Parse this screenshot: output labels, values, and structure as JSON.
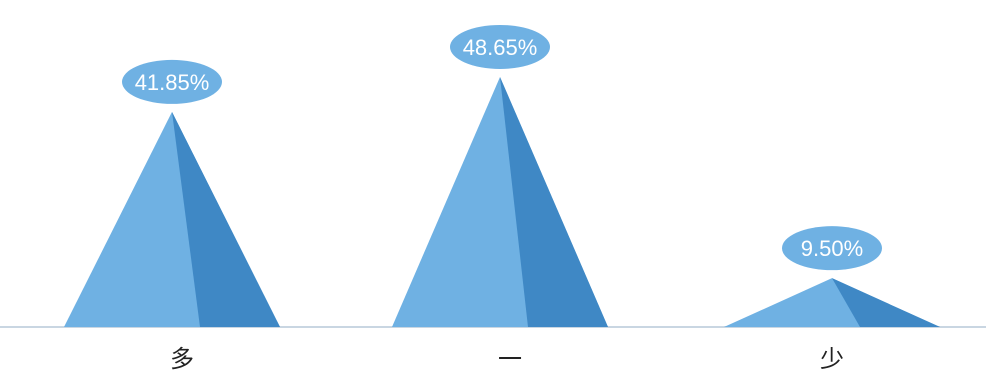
{
  "chart_data": {
    "type": "bar",
    "categories": [
      "多",
      "一",
      "少"
    ],
    "values": [
      41.85,
      48.65,
      9.5
    ],
    "data_labels": [
      "41.85%",
      "48.65%",
      "9.50%"
    ],
    "ylim": [
      0,
      50
    ],
    "grid": false,
    "legend": "none",
    "title": "",
    "xlabel": "",
    "ylabel": ""
  },
  "colors": {
    "pyramid_light": "#6fb1e3",
    "pyramid_dark": "#3f88c5",
    "label_bubble": "#6fb1e3",
    "axis": "#c9d6e2"
  }
}
